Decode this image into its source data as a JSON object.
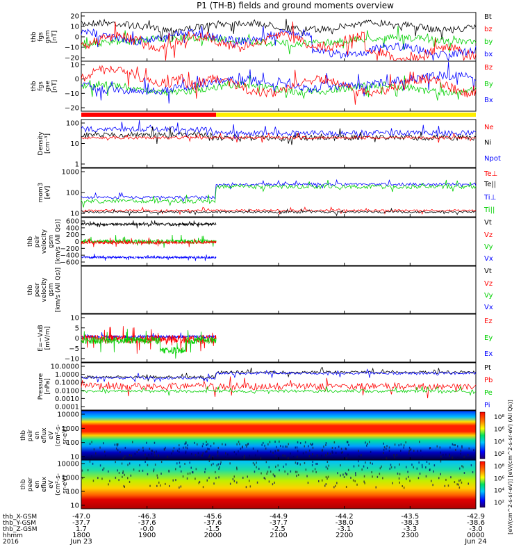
{
  "title": "P1 (TH-B) fields and ground moments overview",
  "colors": {
    "black": "#000000",
    "red": "#ff0000",
    "green": "#00d000",
    "blue": "#0000ff",
    "yellow": "#ffee00"
  },
  "chart_data": [
    {
      "id": "fgs_gsm",
      "type": "line",
      "ylabel": [
        "thb",
        "fgs",
        "gsm",
        "[nT]"
      ],
      "ylim": [
        -20,
        20
      ],
      "yticks": [
        "20",
        "10",
        "0",
        "−10",
        "−20"
      ],
      "series": [
        {
          "name": "Bt",
          "color": "black"
        },
        {
          "name": "bz",
          "color": "red"
        },
        {
          "name": "by",
          "color": "green"
        },
        {
          "name": "bx",
          "color": "blue"
        }
      ]
    },
    {
      "id": "fgs_gse",
      "type": "line",
      "ylabel": [
        "thb",
        "fgs",
        "gse",
        "[nT]"
      ],
      "ylim": [
        -25,
        15
      ],
      "yticks": [
        "10",
        "0",
        "−10",
        "−20"
      ],
      "series": [
        {
          "name": "Bz",
          "color": "red"
        },
        {
          "name": "By",
          "color": "green"
        },
        {
          "name": "Bx",
          "color": "blue"
        }
      ]
    },
    {
      "id": "mode_bar",
      "type": "bar",
      "segments": [
        {
          "from": 1800,
          "to": 2005,
          "color": "red"
        },
        {
          "from": 2005,
          "to": 2400,
          "color": "yellow"
        }
      ]
    },
    {
      "id": "density",
      "type": "line",
      "ylabel": [
        "Density",
        "[cm⁻³]"
      ],
      "scale": "log",
      "ylim": [
        1,
        100
      ],
      "yticks": [
        "100",
        "10",
        "1"
      ],
      "series": [
        {
          "name": "Ne",
          "color": "red"
        },
        {
          "name": "Ni",
          "color": "black"
        },
        {
          "name": "Npot",
          "color": "blue"
        }
      ]
    },
    {
      "id": "temperature",
      "type": "line",
      "ylabel": [
        "mom3",
        "[eV]"
      ],
      "scale": "log",
      "ylim": [
        10,
        3000
      ],
      "yticks": [
        "1000",
        "100",
        "10"
      ],
      "series": [
        {
          "name": "Te⊥",
          "color": "red"
        },
        {
          "name": "Te||",
          "color": "black"
        },
        {
          "name": "Ti⊥",
          "color": "blue"
        },
        {
          "name": "Ti||",
          "color": "green"
        }
      ]
    },
    {
      "id": "peir_velocity",
      "type": "line",
      "ylabel": [
        "thb",
        "peir",
        "velocity",
        "gsm",
        "[km/s (All Qs)]"
      ],
      "ylim": [
        -600,
        600
      ],
      "yticks": [
        "600",
        "400",
        "200",
        "0",
        "−200",
        "−400",
        "−600"
      ],
      "series": [
        {
          "name": "Vt",
          "color": "black"
        },
        {
          "name": "Vz",
          "color": "red"
        },
        {
          "name": "Vy",
          "color": "green"
        },
        {
          "name": "Vx",
          "color": "blue"
        }
      ]
    },
    {
      "id": "peer_velocity",
      "type": "line",
      "ylabel": [
        "thb",
        "peer",
        "velocity",
        "gsm",
        "[km/s (All Qs)]"
      ],
      "yticks": [],
      "series": [
        {
          "name": "Vt",
          "color": "black"
        },
        {
          "name": "Vz",
          "color": "red"
        },
        {
          "name": "Vy",
          "color": "green"
        },
        {
          "name": "Vx",
          "color": "blue"
        }
      ]
    },
    {
      "id": "efield",
      "type": "line",
      "ylabel": [
        "E=−VxB",
        "[mV/m]"
      ],
      "ylim": [
        -10,
        10
      ],
      "yticks": [
        "10",
        "5",
        "0",
        "−5",
        "−10"
      ],
      "series": [
        {
          "name": "Ez",
          "color": "red"
        },
        {
          "name": "Ey",
          "color": "green"
        },
        {
          "name": "Ex",
          "color": "blue"
        }
      ]
    },
    {
      "id": "pressure",
      "type": "line",
      "ylabel": [
        "Pressure",
        "[nPa]"
      ],
      "scale": "log",
      "ylim": [
        0.0001,
        10
      ],
      "yticks": [
        "10.0000",
        "1.0000",
        "0.1000",
        "0.0100",
        "0.0010",
        "0.0001"
      ],
      "series": [
        {
          "name": "Pt",
          "color": "black"
        },
        {
          "name": "Pb",
          "color": "red"
        },
        {
          "name": "Pe",
          "color": "green"
        },
        {
          "name": "Pi",
          "color": "blue"
        }
      ]
    },
    {
      "id": "peir_en_eflux",
      "type": "heatmap",
      "ylabel": [
        "thb",
        "peir",
        "en",
        "eflux",
        "eV",
        "(cm²-s-",
        "sr-eV)"
      ],
      "scale": "log",
      "yticks": [
        "10000",
        "1000",
        "100",
        "10"
      ],
      "colorbar_ticks": [
        "10⁸",
        "10⁶",
        "10⁴",
        "10²"
      ]
    },
    {
      "id": "peer_en_eflux",
      "type": "heatmap",
      "ylabel": [
        "thb",
        "peer",
        "en",
        "eflux",
        "eV",
        "(cm²-s-",
        "sr-eV)"
      ],
      "scale": "log",
      "yticks": [
        "10000",
        "1000",
        "100",
        "10"
      ],
      "colorbar_ticks": [
        "10⁸",
        "10⁶",
        "10⁴",
        "10²"
      ]
    }
  ],
  "colorbar_label": "[eV/(cm^2-s-sr-eV)] [eV/(cm^2-s-sr-eV) (All Qs)]",
  "xaxis": {
    "row_labels": [
      "thb_X-GSM",
      "thb_Y-GSM",
      "thb_Z-GSM",
      "hhmm",
      "2016"
    ],
    "ticks": [
      {
        "x": "-47.0",
        "y": "-37.7",
        "z": "1.7",
        "hhmm": "1800",
        "date": "Jun 23"
      },
      {
        "x": "-46.3",
        "y": "-37.6",
        "z": "-0.0",
        "hhmm": "1900",
        "date": ""
      },
      {
        "x": "-45.6",
        "y": "-37.6",
        "z": "-1.5",
        "hhmm": "2000",
        "date": ""
      },
      {
        "x": "-44.9",
        "y": "-37.7",
        "z": "-2.5",
        "hhmm": "2100",
        "date": ""
      },
      {
        "x": "-44.2",
        "y": "-38.0",
        "z": "-3.1",
        "hhmm": "2200",
        "date": ""
      },
      {
        "x": "-43.5",
        "y": "-38.3",
        "z": "-3.3",
        "hhmm": "2300",
        "date": ""
      },
      {
        "x": "-42.9",
        "y": "-38.6",
        "z": "-3.0",
        "hhmm": "0000",
        "date": "Jun 24"
      }
    ]
  }
}
